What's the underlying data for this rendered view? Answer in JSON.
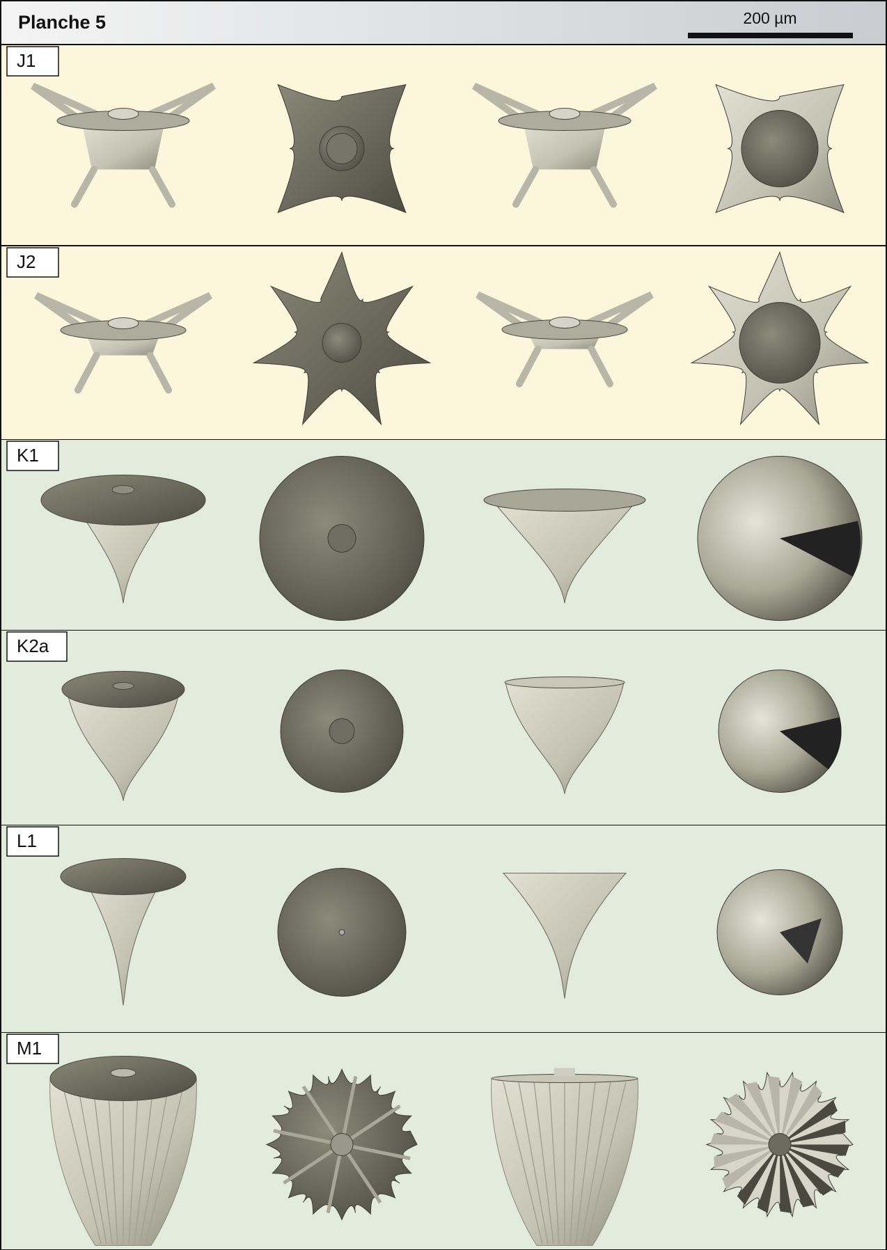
{
  "header": {
    "title": "Planche 5",
    "scale_label": "200 µm"
  },
  "rows": [
    {
      "label": "J1"
    },
    {
      "label": "J2"
    },
    {
      "label": "K1"
    },
    {
      "label": "K2a"
    },
    {
      "label": "L1"
    },
    {
      "label": "M1"
    }
  ]
}
